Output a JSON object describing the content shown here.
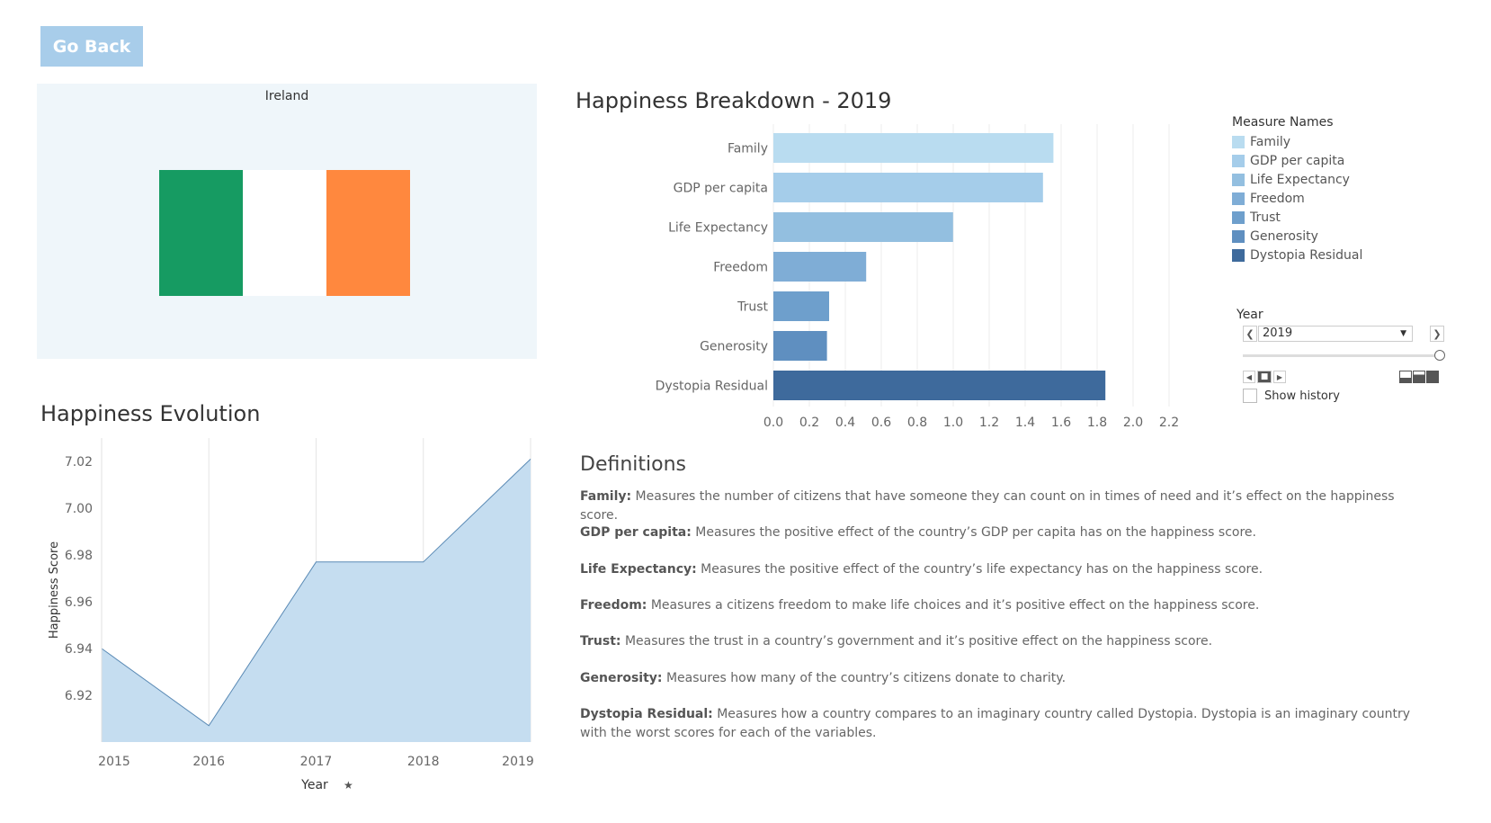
{
  "go_back_label": "Go Back",
  "flag": {
    "country": "Ireland",
    "colors": [
      "#169b62",
      "#ffffff",
      "#ff883e"
    ]
  },
  "breakdown": {
    "title": "Happiness Breakdown - 2019",
    "legend_title": "Measure Names",
    "ticks": [
      "0.0",
      "0.2",
      "0.4",
      "0.6",
      "0.8",
      "1.0",
      "1.2",
      "1.4",
      "1.6",
      "1.8",
      "2.0",
      "2.2"
    ]
  },
  "year_filter": {
    "label": "Year",
    "value": "2019",
    "show_history_label": "Show history"
  },
  "evolution": {
    "title": "Happiness Evolution",
    "y_ticks": [
      "7.02",
      "7.00",
      "6.98",
      "6.96",
      "6.94",
      "6.92"
    ],
    "x_ticks": [
      "2015",
      "2016",
      "2017",
      "2018",
      "2019"
    ]
  },
  "definitions": {
    "title": "Definitions",
    "items": [
      {
        "term": "Family:",
        "text": " Measures the number of citizens that have someone they can count on in times of need and it’s effect on the happiness score."
      },
      {
        "term": "GDP per capita:",
        "text": " Measures the positive effect of the country’s GDP per capita has on the happiness score."
      },
      {
        "term": "Life Expectancy:",
        "text": " Measures the positive effect of the country’s life expectancy has on the happiness score."
      },
      {
        "term": "Freedom:",
        "text": " Measures a citizens freedom to make life choices and it’s positive effect on the happiness score."
      },
      {
        "term": "Trust:",
        "text": " Measures the trust in a country’s government and it’s positive effect on the happiness score."
      },
      {
        "term": "Generosity:",
        "text": " Measures how many of the country’s citizens donate to charity."
      },
      {
        "term": "Dystopia Residual:",
        "text": " Measures how a country compares to an imaginary country called Dystopia. Dystopia is an imaginary country with the worst scores for each of the variables."
      }
    ]
  },
  "chart_data": [
    {
      "type": "bar",
      "orientation": "horizontal",
      "title": "Happiness Breakdown - 2019",
      "categories": [
        "Family",
        "GDP per capita",
        "Life Expectancy",
        "Freedom",
        "Trust",
        "Generosity",
        "Dystopia Residual"
      ],
      "values": [
        1.557,
        1.499,
        0.999,
        0.516,
        0.31,
        0.298,
        1.846
      ],
      "colors": [
        "#b9dcf0",
        "#a5cdea",
        "#93bfe0",
        "#7fadd6",
        "#6e9fcc",
        "#5f8fc0",
        "#3e6a9c"
      ],
      "xlim": [
        0,
        2.3
      ],
      "legend": "right",
      "grid": true
    },
    {
      "type": "area",
      "title": "Happiness Evolution",
      "xlabel": "Year",
      "ylabel": "Happiness Score",
      "x": [
        "2015",
        "2016",
        "2017",
        "2018",
        "2019"
      ],
      "values": [
        6.94,
        6.907,
        6.977,
        6.977,
        7.021
      ],
      "ylim": [
        6.9,
        7.03
      ],
      "color": "#c5ddf0",
      "line_color": "#5a8ab5",
      "grid": true
    }
  ]
}
